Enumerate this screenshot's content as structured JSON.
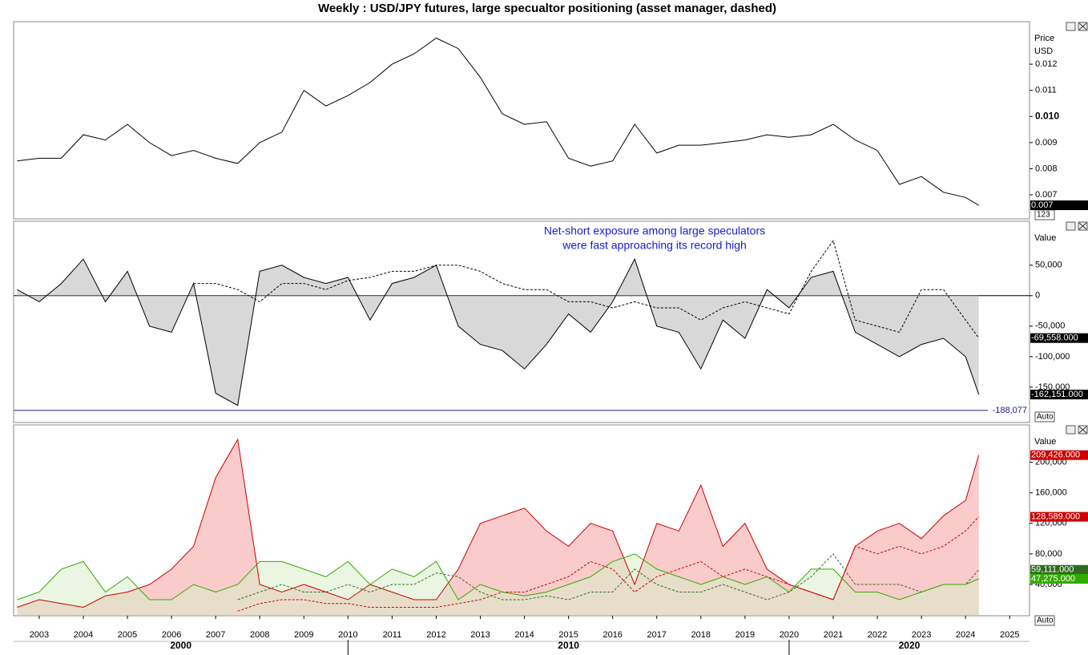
{
  "chart_data": [
    {
      "type": "line",
      "title": "Weekly : USD/JPY futures, large specualtor positioning (asset manager, dashed)",
      "ylabel": "Price",
      "yunit": "USD",
      "control": "123",
      "x": [
        2002.5,
        2003,
        2003.5,
        2004,
        2004.5,
        2005,
        2005.5,
        2006,
        2006.5,
        2007,
        2007.5,
        2008,
        2008.5,
        2009,
        2009.5,
        2010,
        2010.5,
        2011,
        2011.5,
        2012,
        2012.5,
        2013,
        2013.5,
        2014,
        2014.5,
        2015,
        2015.5,
        2016,
        2016.5,
        2017,
        2017.5,
        2018,
        2018.5,
        2019,
        2019.5,
        2020,
        2020.5,
        2021,
        2021.5,
        2022,
        2022.5,
        2023,
        2023.5,
        2024,
        2024.3
      ],
      "xlim": [
        2002.42,
        2025.45
      ],
      "ylim": [
        0.00608,
        0.01363
      ],
      "yticks": [
        0.007,
        0.008,
        0.009,
        {
          "value": 0.01,
          "label": "0.010"
        },
        0.011,
        0.012
      ],
      "series": [
        {
          "color": "#000000",
          "last_label": "0.007",
          "values": [
            0.0083,
            0.0084,
            0.0084,
            0.0093,
            0.0091,
            0.0097,
            0.009,
            0.0085,
            0.0087,
            0.0084,
            0.0082,
            0.009,
            0.0094,
            0.011,
            0.0104,
            0.0108,
            0.0113,
            0.012,
            0.0124,
            0.013,
            0.0126,
            0.0115,
            0.0101,
            0.0097,
            0.0098,
            0.0084,
            0.0081,
            0.0083,
            0.0097,
            0.0086,
            0.0089,
            0.0089,
            0.009,
            0.0091,
            0.0093,
            0.0092,
            0.0093,
            0.0097,
            0.0091,
            0.0087,
            0.0074,
            0.0077,
            0.0071,
            0.0069,
            0.0066
          ]
        }
      ]
    },
    {
      "type": "line",
      "ylabel": "Value",
      "control": "Auto",
      "zero_line": true,
      "annotation": [
        "Net-short exposure among large speculators",
        "were fast approaching its record high"
      ],
      "annotation_color": "#1a1acc",
      "hline": {
        "value": -188077,
        "label": "-188,077",
        "color": "#1a1a8c"
      },
      "x": [
        2002.5,
        2003,
        2003.5,
        2004,
        2004.5,
        2005,
        2005.5,
        2006,
        2006.5,
        2007,
        2007.5,
        2008,
        2008.5,
        2009,
        2009.5,
        2010,
        2010.5,
        2011,
        2011.5,
        2012,
        2012.5,
        2013,
        2013.5,
        2014,
        2014.5,
        2015,
        2015.5,
        2016,
        2016.5,
        2017,
        2017.5,
        2018,
        2018.5,
        2019,
        2019.5,
        2020,
        2020.5,
        2021,
        2021.5,
        2022,
        2022.5,
        2023,
        2023.5,
        2024,
        2024.3
      ],
      "xlim": [
        2002.42,
        2025.45
      ],
      "ylim": [
        -208000,
        122000
      ],
      "yticks": [
        {
          "value": -150000,
          "label": "-150,000"
        },
        {
          "value": -100000,
          "label": "-100,000"
        },
        {
          "value": -50000,
          "label": "-50,000"
        },
        0,
        {
          "value": 50000,
          "label": "50,000"
        }
      ],
      "series": [
        {
          "color": "#000000",
          "fill": "#b8b8b8",
          "last_label": "-162,151.000",
          "values": [
            10000,
            -10000,
            20000,
            60000,
            -10000,
            40000,
            -50000,
            -60000,
            20000,
            -160000,
            -180000,
            40000,
            50000,
            30000,
            20000,
            30000,
            -40000,
            20000,
            30000,
            50000,
            -50000,
            -80000,
            -90000,
            -120000,
            -80000,
            -30000,
            -60000,
            -10000,
            60000,
            -50000,
            -60000,
            -120000,
            -40000,
            -70000,
            10000,
            -20000,
            30000,
            40000,
            -60000,
            -80000,
            -100000,
            -80000,
            -70000,
            -100000,
            -162151
          ]
        },
        {
          "color": "#000000",
          "dashed": true,
          "last_label": "-69,558.000",
          "values": [
            null,
            null,
            null,
            null,
            null,
            null,
            null,
            null,
            20000,
            20000,
            10000,
            -10000,
            20000,
            20000,
            10000,
            25000,
            30000,
            40000,
            40000,
            50000,
            50000,
            40000,
            20000,
            10000,
            10000,
            -10000,
            -10000,
            -20000,
            -10000,
            -20000,
            -20000,
            -40000,
            -20000,
            -10000,
            -20000,
            -30000,
            40000,
            90000,
            -40000,
            -50000,
            -60000,
            10000,
            10000,
            -40000,
            -69558
          ]
        }
      ]
    },
    {
      "type": "line",
      "ylabel": "Value",
      "control": "Auto",
      "x": [
        2002.5,
        2003,
        2003.5,
        2004,
        2004.5,
        2005,
        2005.5,
        2006,
        2006.5,
        2007,
        2007.5,
        2008,
        2008.5,
        2009,
        2009.5,
        2010,
        2010.5,
        2011,
        2011.5,
        2012,
        2012.5,
        2013,
        2013.5,
        2014,
        2014.5,
        2015,
        2015.5,
        2016,
        2016.5,
        2017,
        2017.5,
        2018,
        2018.5,
        2019,
        2019.5,
        2020,
        2020.5,
        2021,
        2021.5,
        2022,
        2022.5,
        2023,
        2023.5,
        2024,
        2024.3
      ],
      "xlim": [
        2002.42,
        2025.45
      ],
      "xticks": [
        2003,
        2004,
        2005,
        2006,
        2007,
        2008,
        2009,
        2010,
        2011,
        2012,
        2013,
        2014,
        2015,
        2016,
        2017,
        2018,
        2019,
        2020,
        2021,
        2022,
        2023,
        2024,
        2025
      ],
      "decades": [
        "2000",
        "2010",
        "2020"
      ],
      "ylim": [
        -1000,
        249000
      ],
      "yticks": [
        {
          "value": 40000,
          "label": "40,000"
        },
        {
          "value": 80000,
          "label": "80,000"
        },
        {
          "value": 120000,
          "label": "120,000"
        },
        {
          "value": 160000,
          "label": "160,000"
        },
        {
          "value": 200000,
          "label": "200,000"
        }
      ],
      "series": [
        {
          "color": "#cc0000",
          "fill": "#f4a0a0",
          "last_label": "209,426.000",
          "values": [
            10000,
            20000,
            15000,
            10000,
            25000,
            30000,
            40000,
            60000,
            90000,
            180000,
            230000,
            40000,
            30000,
            40000,
            30000,
            20000,
            40000,
            30000,
            20000,
            20000,
            60000,
            120000,
            130000,
            140000,
            110000,
            90000,
            120000,
            110000,
            40000,
            120000,
            110000,
            170000,
            90000,
            120000,
            60000,
            40000,
            30000,
            20000,
            90000,
            110000,
            120000,
            100000,
            130000,
            150000,
            209426
          ]
        },
        {
          "color": "#cc0000",
          "dashed": true,
          "last_label": "128,589.000",
          "values": [
            null,
            null,
            null,
            null,
            null,
            null,
            null,
            null,
            null,
            null,
            5000,
            15000,
            20000,
            20000,
            15000,
            15000,
            10000,
            10000,
            10000,
            10000,
            15000,
            20000,
            30000,
            30000,
            40000,
            50000,
            70000,
            60000,
            30000,
            50000,
            60000,
            70000,
            50000,
            60000,
            50000,
            40000,
            30000,
            20000,
            90000,
            80000,
            90000,
            80000,
            90000,
            110000,
            128589
          ]
        },
        {
          "color": "#2e6b1f",
          "dashed": true,
          "last_label": "59,111.000",
          "values": [
            null,
            null,
            null,
            null,
            null,
            null,
            null,
            null,
            null,
            null,
            20000,
            30000,
            40000,
            30000,
            30000,
            40000,
            30000,
            40000,
            40000,
            55000,
            50000,
            30000,
            20000,
            20000,
            25000,
            20000,
            30000,
            30000,
            60000,
            40000,
            30000,
            30000,
            40000,
            30000,
            20000,
            30000,
            50000,
            80000,
            40000,
            40000,
            40000,
            30000,
            40000,
            40000,
            59111
          ]
        },
        {
          "color": "#33aa00",
          "fill": "#d8efc8",
          "last_label": "47,275.000",
          "values": [
            20000,
            30000,
            60000,
            70000,
            30000,
            50000,
            20000,
            20000,
            40000,
            30000,
            40000,
            70000,
            70000,
            60000,
            50000,
            70000,
            40000,
            60000,
            50000,
            70000,
            20000,
            40000,
            30000,
            25000,
            30000,
            40000,
            50000,
            70000,
            80000,
            60000,
            50000,
            40000,
            50000,
            40000,
            50000,
            30000,
            60000,
            60000,
            30000,
            30000,
            20000,
            30000,
            40000,
            40000,
            47275
          ]
        }
      ]
    }
  ]
}
